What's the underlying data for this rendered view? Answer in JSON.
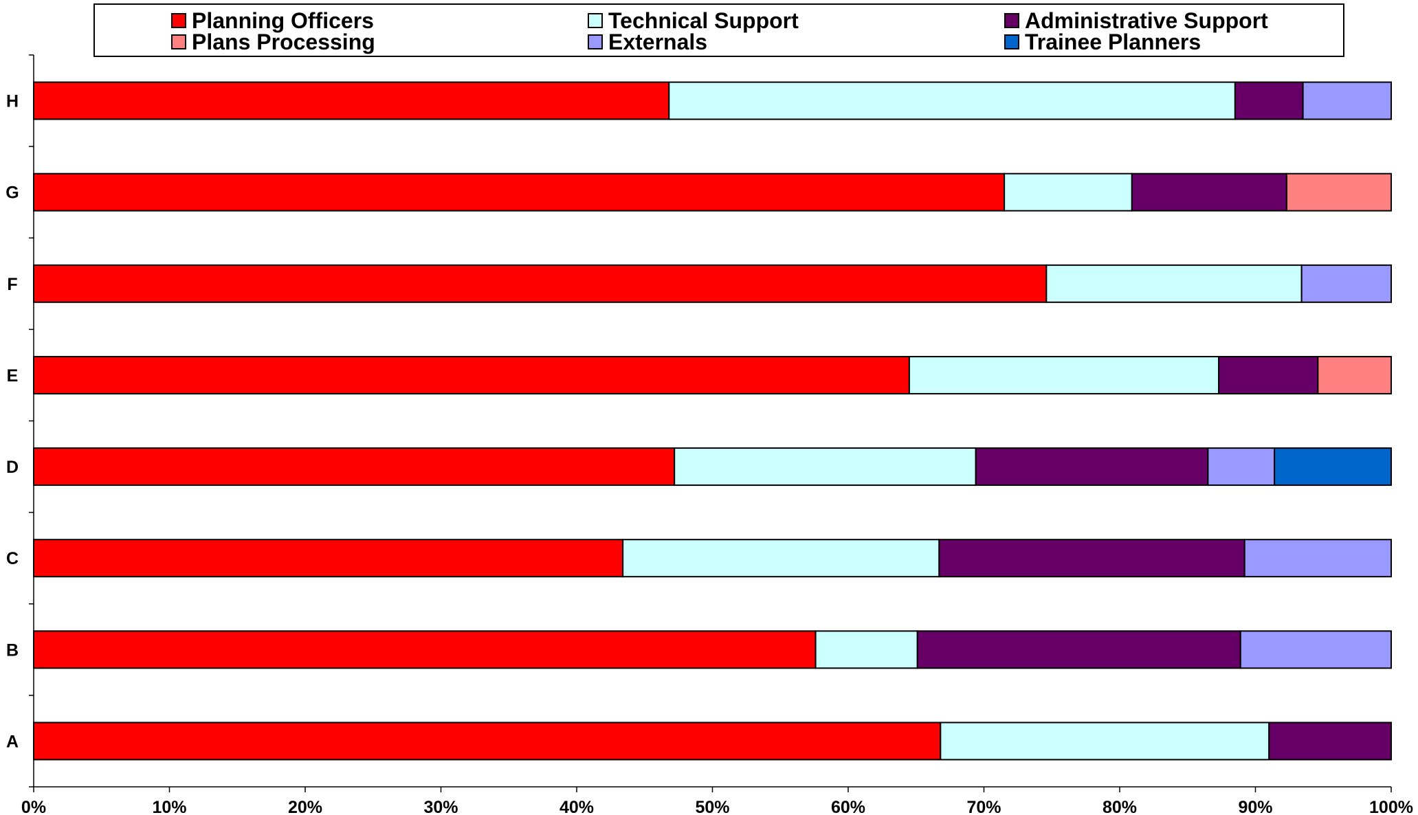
{
  "chart_data": {
    "type": "bar",
    "orientation": "horizontal",
    "stacked": true,
    "categories": [
      "A",
      "B",
      "C",
      "D",
      "E",
      "F",
      "G",
      "H"
    ],
    "series": [
      {
        "name": "Planning Officers",
        "color": "#ff0000",
        "values": [
          66.8,
          57.6,
          43.4,
          47.2,
          64.5,
          74.6,
          71.5,
          46.8
        ]
      },
      {
        "name": "Technical Support",
        "color": "#ccffff",
        "values": [
          24.2,
          7.5,
          23.3,
          22.2,
          22.8,
          18.8,
          9.4,
          41.7
        ]
      },
      {
        "name": "Administrative Support",
        "color": "#660066",
        "values": [
          9.0,
          23.8,
          22.5,
          17.1,
          7.3,
          0,
          11.4,
          5.0
        ]
      },
      {
        "name": "Plans Processing",
        "color": "#ff8080",
        "values": [
          0,
          0,
          0,
          0,
          5.4,
          0,
          7.7,
          0
        ]
      },
      {
        "name": "Externals",
        "color": "#9999ff",
        "values": [
          0,
          11.1,
          10.8,
          4.9,
          0,
          6.6,
          0,
          6.5
        ]
      },
      {
        "name": "Trainee Planners",
        "color": "#0066cc",
        "values": [
          0,
          0,
          0,
          8.6,
          0,
          0,
          0,
          0
        ]
      }
    ],
    "xlim": [
      0,
      100
    ],
    "x_ticks": [
      "0%",
      "10%",
      "20%",
      "30%",
      "40%",
      "50%",
      "60%",
      "70%",
      "80%",
      "90%",
      "100%"
    ],
    "grid": false,
    "legend_position": "top"
  }
}
